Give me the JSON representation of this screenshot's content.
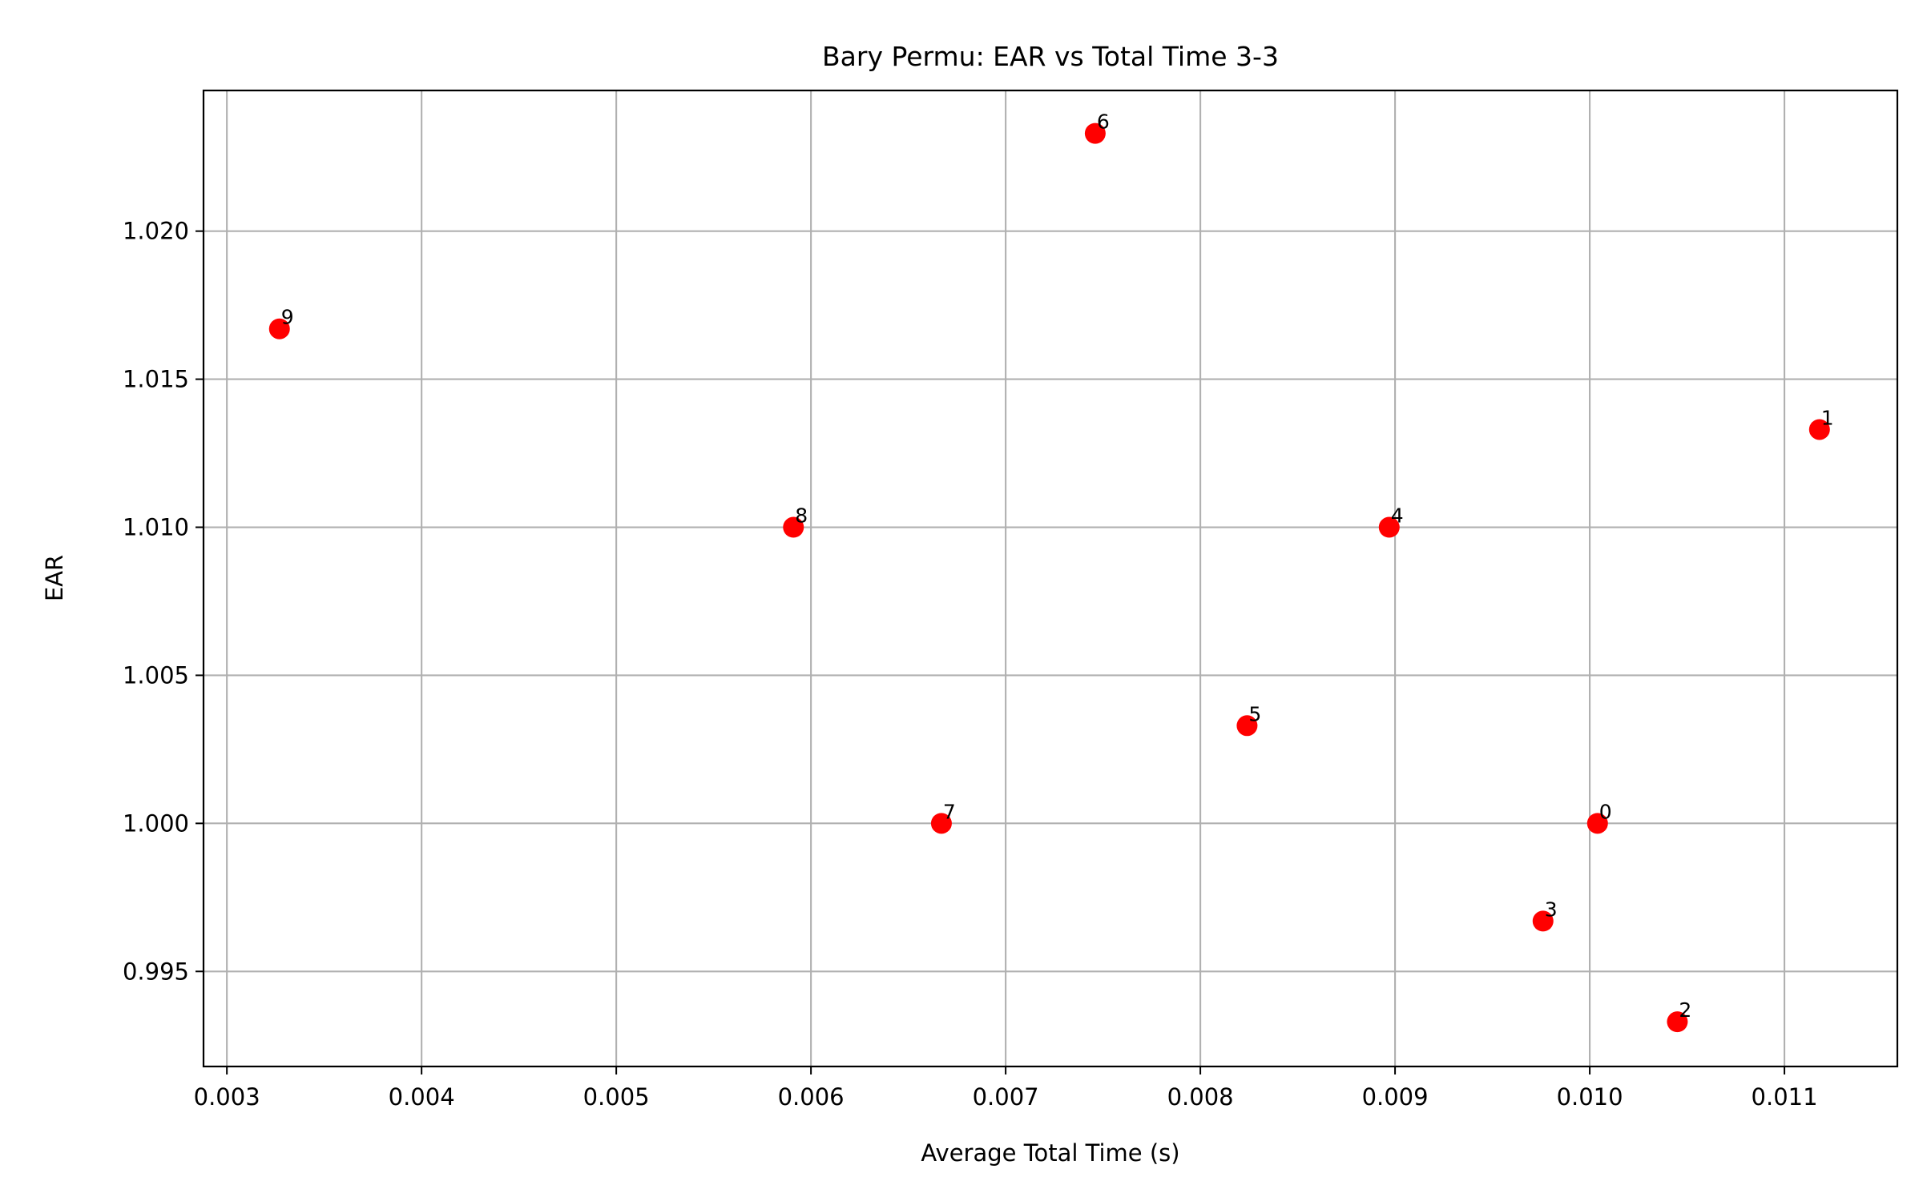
{
  "chart_data": {
    "type": "scatter",
    "title": "Bary Permu: EAR vs Total Time 3-3",
    "xlabel": "Average Total Time (s)",
    "ylabel": "EAR",
    "xlim": [
      0.00288,
      0.01158
    ],
    "ylim": [
      0.99179,
      1.02475
    ],
    "grid": true,
    "x_ticks": [
      0.003,
      0.004,
      0.005,
      0.006,
      0.007,
      0.008,
      0.009,
      0.01,
      0.011
    ],
    "x_tick_labels": [
      "0.003",
      "0.004",
      "0.005",
      "0.006",
      "0.007",
      "0.008",
      "0.009",
      "0.010",
      "0.011"
    ],
    "y_ticks": [
      0.995,
      1.0,
      1.005,
      1.01,
      1.015,
      1.02
    ],
    "y_tick_labels": [
      "0.995",
      "1.000",
      "1.005",
      "1.010",
      "1.015",
      "1.020"
    ],
    "marker_color": "#ff0000",
    "points": [
      {
        "label": "0",
        "x": 0.01004,
        "y": 1.0
      },
      {
        "label": "1",
        "x": 0.01118,
        "y": 1.0133
      },
      {
        "label": "2",
        "x": 0.01045,
        "y": 0.9933
      },
      {
        "label": "3",
        "x": 0.00976,
        "y": 0.9967
      },
      {
        "label": "4",
        "x": 0.00897,
        "y": 1.01
      },
      {
        "label": "5",
        "x": 0.00824,
        "y": 1.0033
      },
      {
        "label": "6",
        "x": 0.00746,
        "y": 1.0233
      },
      {
        "label": "7",
        "x": 0.00667,
        "y": 1.0
      },
      {
        "label": "8",
        "x": 0.00591,
        "y": 1.01
      },
      {
        "label": "9",
        "x": 0.00327,
        "y": 1.0167
      }
    ]
  }
}
